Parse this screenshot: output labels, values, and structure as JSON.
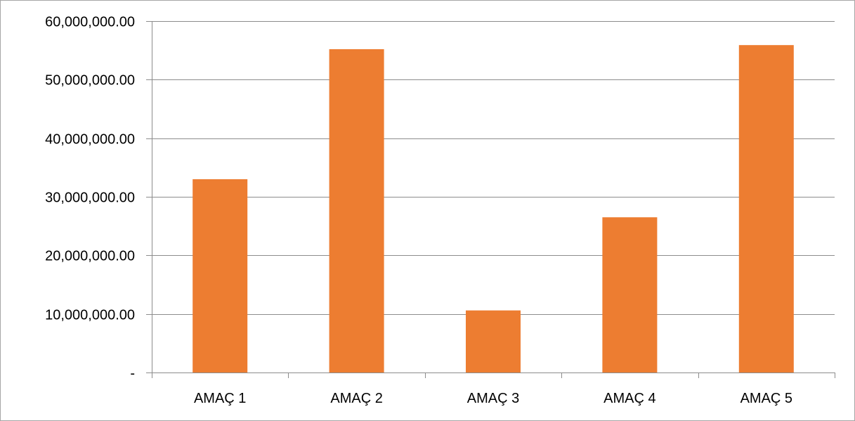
{
  "chart_data": {
    "type": "bar",
    "categories": [
      "AMAÇ 1",
      "AMAÇ 2",
      "AMAÇ 3",
      "AMAÇ 4",
      "AMAÇ 5"
    ],
    "values": [
      33000000,
      55200000,
      10600000,
      26500000,
      55900000
    ],
    "ylim": [
      0,
      60000000
    ],
    "yticks": [
      0,
      10000000,
      20000000,
      30000000,
      40000000,
      50000000,
      60000000
    ],
    "ytick_labels": [
      "-",
      "10,000,000.00",
      "20,000,000.00",
      "30,000,000.00",
      "40,000,000.00",
      "50,000,000.00",
      "60,000,000.00"
    ],
    "grid": true,
    "legend": "none",
    "bar_color": "#ed7d31",
    "grid_color": "#8c8c8c"
  }
}
